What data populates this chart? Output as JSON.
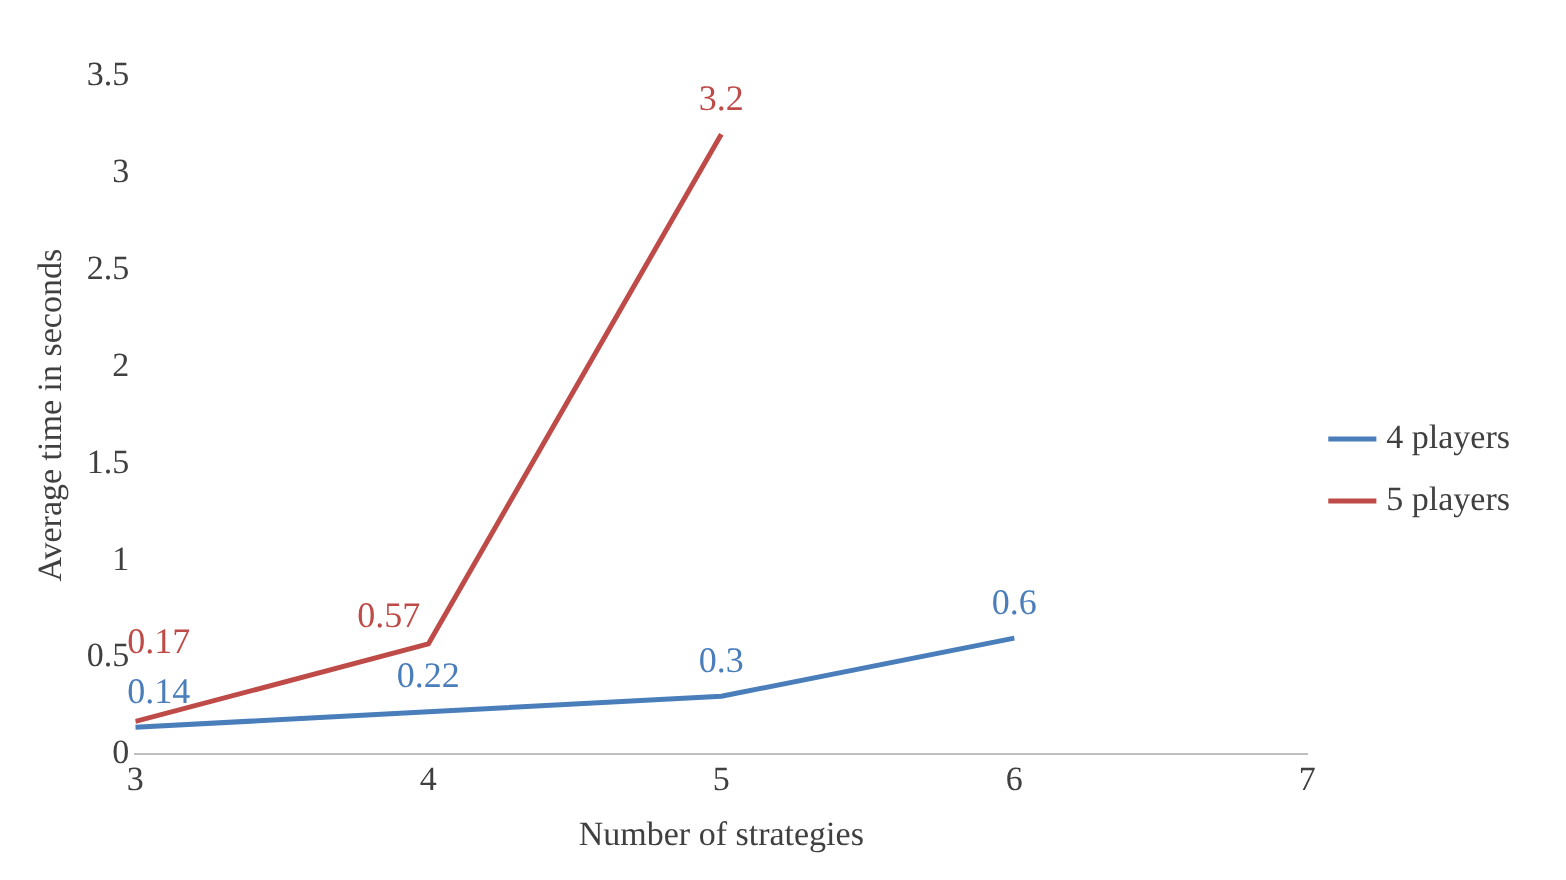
{
  "chart_data": {
    "type": "line",
    "xlabel": "Number of strategies",
    "ylabel": "Average time in seconds",
    "xlim": [
      3,
      7
    ],
    "xticks": [
      3,
      4,
      5,
      6,
      7
    ],
    "ylim": [
      0,
      3.5
    ],
    "yticks": [
      0,
      0.5,
      1,
      1.5,
      2,
      2.5,
      3,
      3.5
    ],
    "series": [
      {
        "name": "4 players",
        "color": "#4a7ebb",
        "x": [
          3,
          4,
          5,
          6
        ],
        "values": [
          0.14,
          0.22,
          0.3,
          0.6
        ]
      },
      {
        "name": "5 players",
        "color": "#be4b48",
        "x": [
          3,
          4,
          5
        ],
        "values": [
          0.17,
          0.57,
          3.2
        ]
      }
    ],
    "data_labels": true,
    "grid": false,
    "legend": "right",
    "marker": "none",
    "line_style": "solid"
  }
}
